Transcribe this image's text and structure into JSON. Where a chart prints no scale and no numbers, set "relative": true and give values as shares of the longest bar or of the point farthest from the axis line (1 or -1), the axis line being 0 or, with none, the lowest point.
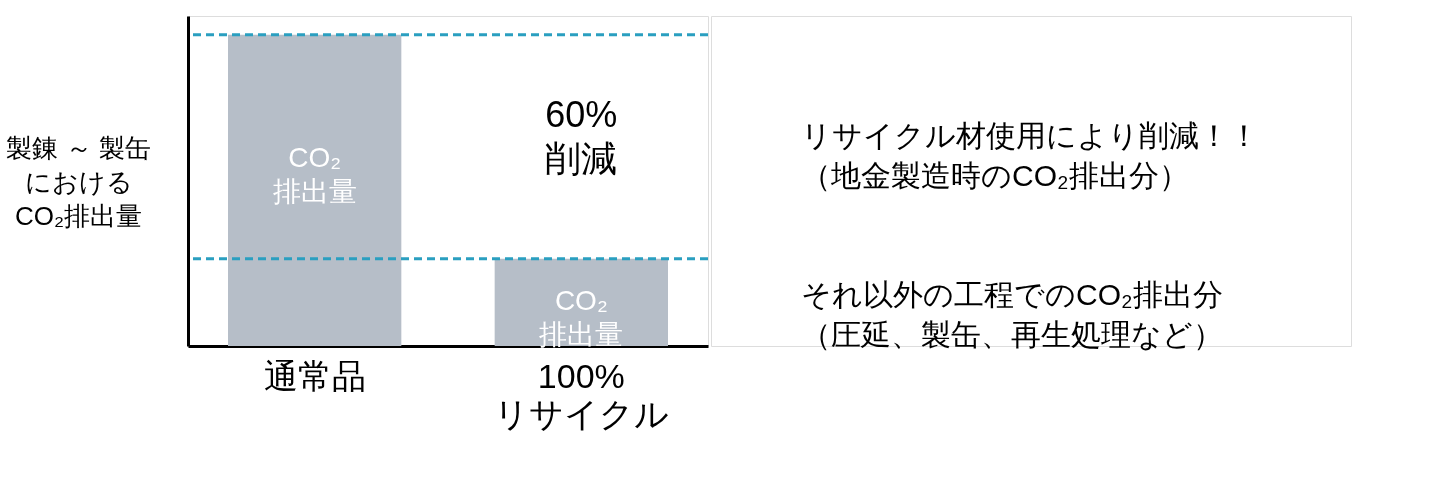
{
  "chart_data": {
    "type": "bar",
    "relative": true,
    "ylabel": "製錬 ～ 製缶における\nCO₂排出量",
    "categories": [
      "通常品",
      "100%\nリサイクル"
    ],
    "values": [
      1,
      0.28
    ],
    "color": "#b6bec8",
    "grid": false,
    "ref_lines": [
      {
        "axis": "y",
        "value": 1,
        "color": "#2a9fc0",
        "line_style": "dashed"
      },
      {
        "axis": "y",
        "value": 0.28,
        "color": "#2a9fc0",
        "line_style": "dashed"
      }
    ],
    "annotations": [
      "CO₂\n排出量",
      "CO₂\n排出量",
      "60%\n削減",
      "リサイクル材使用により削減！！（地金製造時のCO₂排出分）",
      "それ以外の工程でのCO₂排出分（圧延、製缶、再生処理など）"
    ]
  }
}
